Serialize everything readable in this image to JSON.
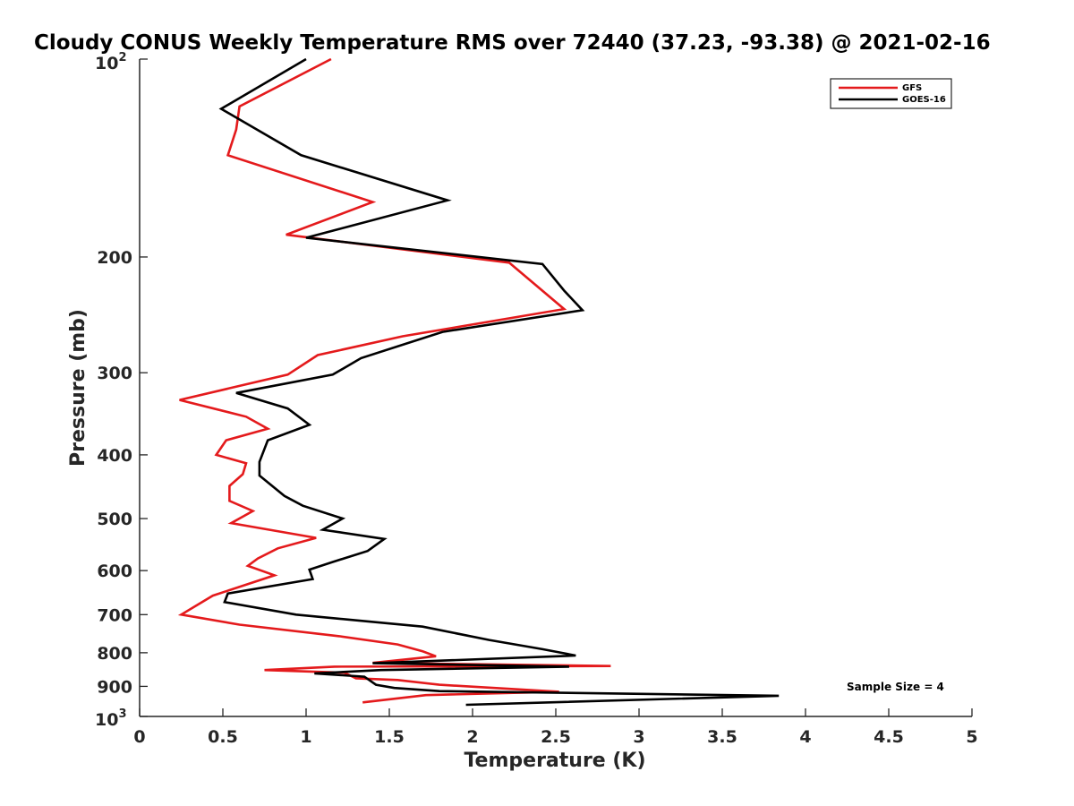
{
  "chart_data": {
    "type": "line",
    "title": "Cloudy CONUS Weekly Temperature RMS over 72440 (37.23, -93.38) @ 2021-02-16",
    "xlabel": "Temperature (K)",
    "ylabel": "Pressure (mb)",
    "xlim": [
      0,
      5
    ],
    "ylim": [
      100,
      1000
    ],
    "y_scale": "log",
    "y_reversed": true,
    "x_ticks": [
      0,
      0.5,
      1,
      1.5,
      2,
      2.5,
      3,
      3.5,
      4,
      4.5,
      5
    ],
    "x_tick_labels": [
      "0",
      "0.5",
      "1",
      "1.5",
      "2",
      "2.5",
      "3",
      "3.5",
      "4",
      "4.5",
      "5"
    ],
    "y_ticks": [
      200,
      300,
      400,
      500,
      600,
      700,
      800,
      900
    ],
    "y_tick_labels": [
      "200",
      "300",
      "400",
      "500",
      "600",
      "700",
      "800",
      "900"
    ],
    "y_tick_base": "10",
    "y_tick_exp_top": "2",
    "y_tick_exp_bottom": "3",
    "grid": false,
    "legend_placement": "top-right",
    "annotation": "Sample Size = 4",
    "series": [
      {
        "name": "GFS",
        "color": "#e41a1c",
        "x": [
          1.15,
          0.6,
          0.58,
          0.53,
          1.4,
          0.88,
          2.22,
          2.55,
          1.58,
          1.07,
          0.89,
          0.24,
          0.64,
          0.77,
          0.52,
          0.46,
          0.64,
          0.62,
          0.54,
          0.54,
          0.68,
          0.55,
          1.06,
          0.83,
          0.71,
          0.65,
          0.81,
          0.44,
          0.25,
          0.6,
          1.2,
          1.55,
          1.7,
          1.78,
          1.4,
          2.83,
          1.17,
          0.75,
          1.23,
          1.3,
          1.55,
          1.8,
          2.52,
          1.72,
          1.34
        ],
        "y": [
          100,
          118,
          128,
          140,
          165,
          185,
          204,
          240,
          264,
          282,
          302,
          330,
          350,
          365,
          380,
          400,
          412,
          428,
          446,
          470,
          487,
          508,
          535,
          555,
          575,
          590,
          610,
          655,
          700,
          725,
          755,
          777,
          796,
          810,
          829,
          838,
          840,
          850,
          858,
          875,
          880,
          895,
          917,
          928,
          952
        ]
      },
      {
        "name": "GOES-16",
        "color": "#000000",
        "x": [
          1.0,
          0.49,
          0.97,
          1.85,
          1.0,
          2.42,
          2.55,
          2.66,
          1.82,
          1.33,
          1.16,
          0.58,
          0.89,
          1.02,
          0.77,
          0.72,
          0.72,
          0.87,
          0.98,
          1.22,
          1.1,
          1.47,
          1.37,
          1.16,
          1.02,
          1.04,
          0.53,
          0.51,
          0.94,
          1.7,
          2.1,
          2.42,
          2.62,
          1.4,
          2.58,
          1.45,
          1.05,
          1.35,
          1.42,
          1.53,
          1.8,
          3.84,
          1.96
        ],
        "y": [
          100,
          119,
          140,
          164,
          187,
          205,
          225,
          241,
          260,
          285,
          302,
          322,
          340,
          360,
          380,
          410,
          430,
          462,
          478,
          500,
          520,
          537,
          560,
          582,
          598,
          618,
          650,
          670,
          700,
          730,
          765,
          790,
          808,
          830,
          840,
          850,
          860,
          870,
          895,
          905,
          915,
          930,
          960
        ]
      }
    ]
  }
}
